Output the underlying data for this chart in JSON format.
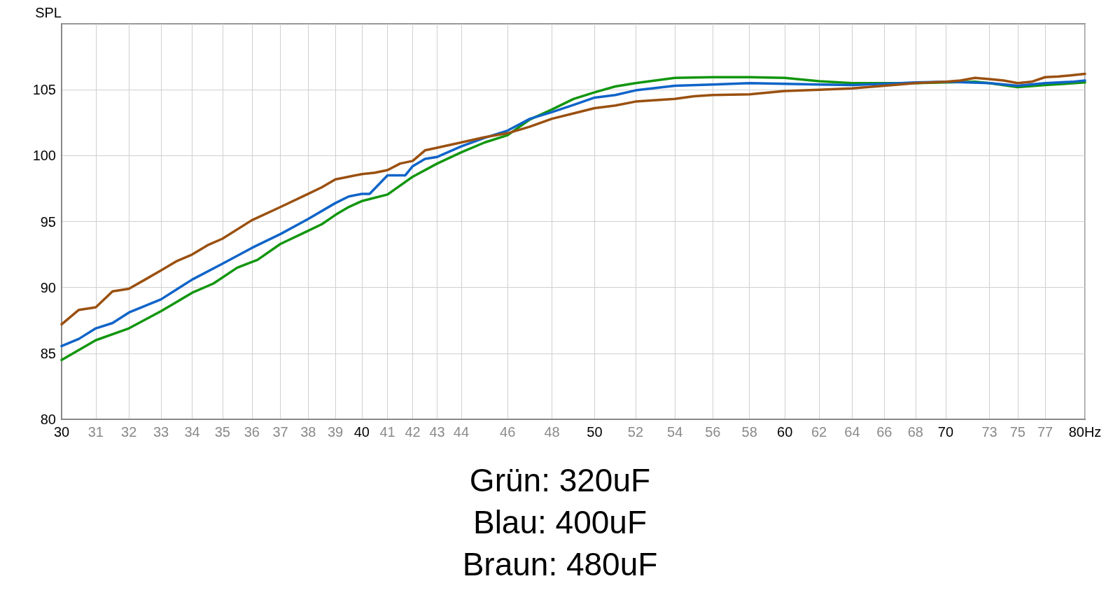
{
  "chart_data": {
    "type": "line",
    "ylabel": "SPL",
    "log": "x",
    "grid": true,
    "marker": "none",
    "line_style": "solid",
    "xlim": [
      30,
      80
    ],
    "xticks": [
      30,
      31,
      32,
      33,
      34,
      35,
      36,
      37,
      38,
      39,
      40,
      41,
      42,
      43,
      44,
      46,
      48,
      50,
      52,
      54,
      56,
      58,
      60,
      62,
      64,
      66,
      68,
      70,
      73,
      75,
      77,
      {
        "value": 80,
        "label": "80Hz"
      }
    ],
    "ylim": [
      80,
      110
    ],
    "yticks": [
      80,
      85,
      90,
      95,
      100,
      105
    ],
    "annotations": [
      "Grün: 320uF",
      "Blau: 400uF",
      "Braun: 480uF"
    ],
    "series": [
      {
        "color": "#12960f",
        "x": [
          30,
          31,
          32,
          33,
          34,
          34.7,
          35.5,
          36.2,
          37,
          38,
          38.5,
          39,
          39.5,
          40,
          41,
          42,
          43,
          44,
          45,
          46,
          47,
          48,
          49,
          50,
          51,
          52,
          54,
          56,
          58,
          60,
          62,
          64,
          66,
          68,
          70,
          72,
          73,
          75,
          77,
          80
        ],
        "values": [
          84.5,
          86.0,
          86.9,
          88.2,
          89.6,
          90.3,
          91.5,
          92.1,
          93.3,
          94.3,
          94.8,
          95.5,
          96.1,
          96.55,
          97.05,
          98.4,
          99.4,
          100.25,
          101.0,
          101.55,
          102.75,
          103.5,
          104.3,
          104.8,
          105.25,
          105.5,
          105.9,
          105.95,
          105.95,
          105.9,
          105.65,
          105.5,
          105.5,
          105.5,
          105.55,
          105.6,
          105.5,
          105.2,
          105.35,
          105.55
        ]
      },
      {
        "color": "#0f64c8",
        "x": [
          30,
          30.5,
          31,
          31.5,
          32,
          33,
          34,
          35,
          36,
          37,
          38,
          39,
          39.5,
          40,
          40.3,
          41,
          41.7,
          42,
          42.5,
          43,
          44,
          45,
          46,
          47,
          48,
          49,
          50,
          51,
          52,
          54,
          56,
          58,
          60,
          62,
          64,
          66,
          68,
          70,
          73,
          75,
          77,
          79,
          80
        ],
        "values": [
          85.55,
          86.1,
          86.9,
          87.3,
          88.1,
          89.1,
          90.6,
          91.8,
          93.0,
          94.05,
          95.2,
          96.4,
          96.9,
          97.1,
          97.1,
          98.5,
          98.5,
          99.2,
          99.75,
          99.9,
          100.7,
          101.35,
          101.9,
          102.8,
          103.3,
          103.85,
          104.4,
          104.6,
          104.95,
          105.3,
          105.4,
          105.5,
          105.45,
          105.4,
          105.35,
          105.45,
          105.55,
          105.6,
          105.5,
          105.3,
          105.5,
          105.6,
          105.7
        ]
      },
      {
        "color": "#9a5010",
        "x": [
          30,
          30.5,
          31,
          31.5,
          32,
          32.5,
          33,
          33.5,
          34,
          34.5,
          35,
          36,
          37,
          38,
          38.5,
          39,
          39.5,
          40,
          40.5,
          41,
          41.5,
          42,
          42.5,
          43,
          44,
          45,
          46,
          47,
          48,
          49,
          50,
          51,
          52,
          54,
          55,
          56,
          58,
          60,
          62,
          64,
          66,
          68,
          70,
          71,
          72,
          73,
          74,
          75,
          76,
          77,
          78,
          79,
          80
        ],
        "values": [
          87.2,
          88.3,
          88.5,
          89.7,
          89.9,
          90.6,
          91.3,
          92.0,
          92.5,
          93.2,
          93.7,
          95.1,
          96.1,
          97.1,
          97.6,
          98.2,
          98.4,
          98.6,
          98.7,
          98.9,
          99.4,
          99.6,
          100.4,
          100.6,
          101.0,
          101.4,
          101.7,
          102.2,
          102.8,
          103.2,
          103.6,
          103.8,
          104.1,
          104.3,
          104.5,
          104.6,
          104.65,
          104.9,
          105.0,
          105.1,
          105.3,
          105.5,
          105.6,
          105.7,
          105.9,
          105.8,
          105.7,
          105.5,
          105.6,
          105.95,
          106.0,
          106.1,
          106.2
        ]
      }
    ]
  }
}
